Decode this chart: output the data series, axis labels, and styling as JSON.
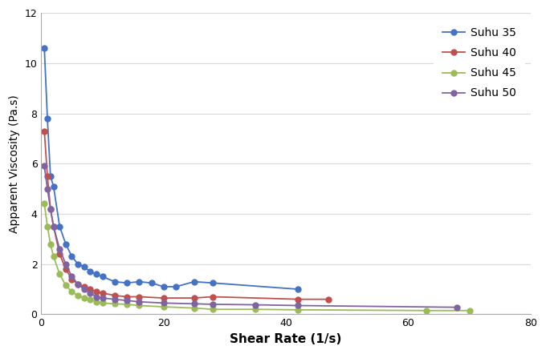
{
  "series": [
    {
      "label": "Suhu 35",
      "color": "#4472C4",
      "x": [
        0.5,
        1.0,
        1.5,
        2.0,
        3.0,
        4.0,
        5.0,
        6.0,
        7.0,
        8.0,
        9.0,
        10.0,
        12.0,
        14.0,
        16.0,
        18.0,
        20.0,
        22.0,
        25.0,
        28.0,
        42.0
      ],
      "y": [
        10.6,
        7.8,
        5.5,
        5.1,
        3.5,
        2.8,
        2.3,
        2.0,
        1.9,
        1.7,
        1.6,
        1.5,
        1.3,
        1.25,
        1.3,
        1.25,
        1.1,
        1.1,
        1.3,
        1.25,
        1.0
      ]
    },
    {
      "label": "Suhu 40",
      "color": "#C0504D",
      "x": [
        0.5,
        1.0,
        1.5,
        2.0,
        3.0,
        4.0,
        5.0,
        6.0,
        7.0,
        8.0,
        9.0,
        10.0,
        12.0,
        14.0,
        16.0,
        20.0,
        25.0,
        28.0,
        42.0,
        47.0
      ],
      "y": [
        7.3,
        5.5,
        4.2,
        3.5,
        2.4,
        1.8,
        1.4,
        1.2,
        1.1,
        1.0,
        0.9,
        0.85,
        0.75,
        0.7,
        0.7,
        0.65,
        0.65,
        0.7,
        0.6,
        0.6
      ]
    },
    {
      "label": "Suhu 45",
      "color": "#9BBB59",
      "x": [
        0.5,
        1.0,
        1.5,
        2.0,
        3.0,
        4.0,
        5.0,
        6.0,
        7.0,
        8.0,
        9.0,
        10.0,
        12.0,
        14.0,
        16.0,
        20.0,
        25.0,
        28.0,
        35.0,
        42.0,
        63.0,
        70.0
      ],
      "y": [
        4.4,
        3.5,
        2.8,
        2.3,
        1.6,
        1.15,
        0.9,
        0.75,
        0.65,
        0.6,
        0.5,
        0.45,
        0.42,
        0.4,
        0.35,
        0.3,
        0.25,
        0.2,
        0.2,
        0.18,
        0.15,
        0.15
      ]
    },
    {
      "label": "Suhu 50",
      "color": "#8064A2",
      "x": [
        0.5,
        1.0,
        1.5,
        2.0,
        3.0,
        4.0,
        5.0,
        6.0,
        7.0,
        8.0,
        9.0,
        10.0,
        12.0,
        14.0,
        16.0,
        20.0,
        25.0,
        28.0,
        35.0,
        42.0,
        68.0
      ],
      "y": [
        5.9,
        5.0,
        4.2,
        3.5,
        2.6,
        2.0,
        1.5,
        1.2,
        1.0,
        0.85,
        0.7,
        0.65,
        0.6,
        0.55,
        0.5,
        0.45,
        0.42,
        0.4,
        0.38,
        0.35,
        0.28
      ]
    }
  ],
  "xlabel": "Shear Rate (1/s)",
  "ylabel": "Apparent Viscosity (Pa.s)",
  "xlim": [
    0,
    80
  ],
  "ylim": [
    0,
    12
  ],
  "xticks": [
    0,
    20,
    40,
    60,
    80
  ],
  "yticks": [
    0,
    2,
    4,
    6,
    8,
    10,
    12
  ],
  "marker": "o",
  "markersize": 5,
  "linewidth": 1.3,
  "background_color": "#FFFFFF",
  "xlabel_fontsize": 11,
  "ylabel_fontsize": 10,
  "tick_fontsize": 9,
  "legend_fontsize": 10,
  "grid_color": "#D9D9D9",
  "spine_color": "#AAAAAA"
}
